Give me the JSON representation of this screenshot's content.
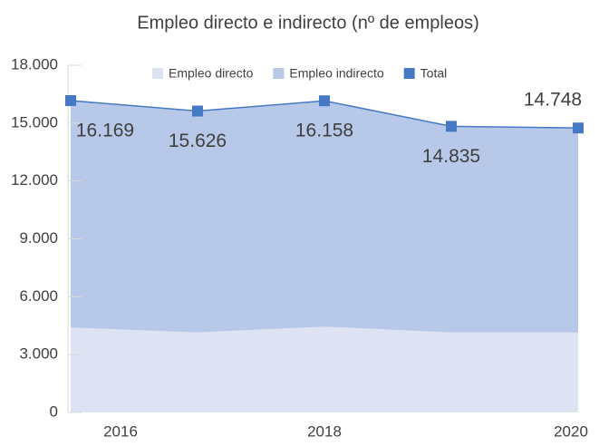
{
  "chart_data": {
    "type": "stacked_area_line",
    "title": "Empleo directo e indirecto (nº de empleos)",
    "categories": [
      "2016",
      null,
      "2018",
      null,
      "2020"
    ],
    "series": [
      {
        "name": "Empleo directo",
        "color": "#dde3f3",
        "values": [
          4400,
          4150,
          4450,
          4150,
          4150
        ]
      },
      {
        "name": "Empleo indirecto",
        "color": "#b8c8e8",
        "values": [
          11769,
          11476,
          11708,
          10685,
          10598
        ]
      },
      {
        "name": "Total",
        "color": "#4579c4",
        "values": [
          16169,
          15626,
          16158,
          14835,
          14748
        ],
        "value_labels": [
          "16.169",
          "15.626",
          "16.158",
          "14.835",
          "14.748"
        ]
      }
    ],
    "ylim": [
      0,
      18000
    ],
    "yticks": [
      0,
      {
        "value": 3000,
        "label": "3.000"
      },
      {
        "value": 6000,
        "label": "6.000"
      },
      {
        "value": 9000,
        "label": "9.000"
      },
      {
        "value": 12000,
        "label": "12.000"
      },
      {
        "value": 15000,
        "label": "15.000"
      },
      {
        "value": 18000,
        "label": "18.000"
      }
    ],
    "legend": "top"
  }
}
